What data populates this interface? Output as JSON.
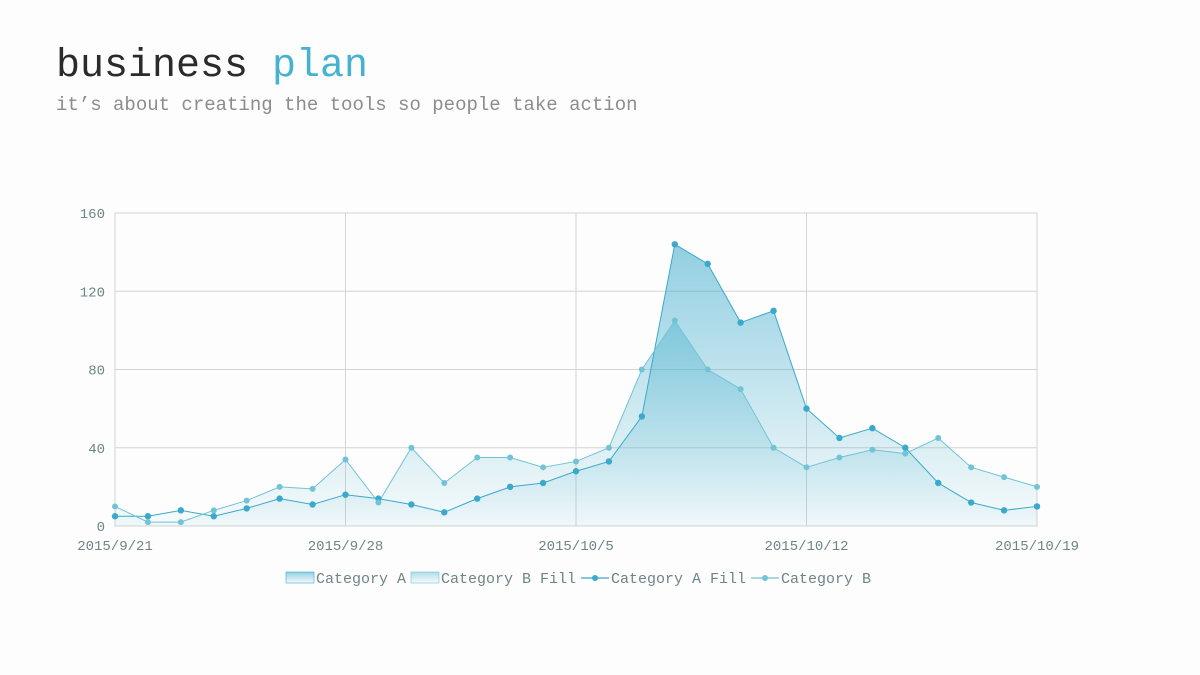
{
  "header": {
    "title_main": "business",
    "title_accent": "plan",
    "subtitle": "it’s about creating the tools so people take action"
  },
  "colors": {
    "accent": "#45b3cf",
    "series_a": "#3aa9cb",
    "series_b": "#72c3d6",
    "grid": "#d4d4d4"
  },
  "chart_data": {
    "type": "area",
    "title": "",
    "xlabel": "",
    "ylabel": "",
    "ylim": [
      0,
      160
    ],
    "yticks": [
      0,
      40,
      80,
      120,
      160
    ],
    "x_tick_labels": [
      "2015/9/21",
      "2015/9/28",
      "2015/10/5",
      "2015/10/12",
      "2015/10/19"
    ],
    "x": [
      "2015/9/21",
      "2015/9/22",
      "2015/9/23",
      "2015/9/24",
      "2015/9/25",
      "2015/9/26",
      "2015/9/27",
      "2015/9/28",
      "2015/9/29",
      "2015/9/30",
      "2015/10/1",
      "2015/10/2",
      "2015/10/3",
      "2015/10/4",
      "2015/10/5",
      "2015/10/6",
      "2015/10/7",
      "2015/10/8",
      "2015/10/9",
      "2015/10/10",
      "2015/10/11",
      "2015/10/12",
      "2015/10/13",
      "2015/10/14",
      "2015/10/15",
      "2015/10/16",
      "2015/10/17",
      "2015/10/18",
      "2015/10/19"
    ],
    "series": [
      {
        "name": "Category A",
        "values": [
          5,
          5,
          8,
          5,
          9,
          14,
          11,
          16,
          14,
          11,
          7,
          14,
          20,
          22,
          28,
          33,
          56,
          144,
          134,
          104,
          110,
          60,
          45,
          50,
          40,
          22,
          12,
          8,
          10
        ]
      },
      {
        "name": "Category B",
        "values": [
          10,
          2,
          2,
          8,
          13,
          20,
          19,
          34,
          12,
          40,
          22,
          35,
          35,
          30,
          33,
          40,
          80,
          105,
          80,
          70,
          40,
          30,
          35,
          39,
          37,
          45,
          30,
          25,
          20
        ]
      }
    ],
    "legend": {
      "position": "bottom",
      "entries": [
        "Category A",
        "Category B Fill",
        "Category A Fill",
        "Category B"
      ]
    },
    "grid": true
  }
}
